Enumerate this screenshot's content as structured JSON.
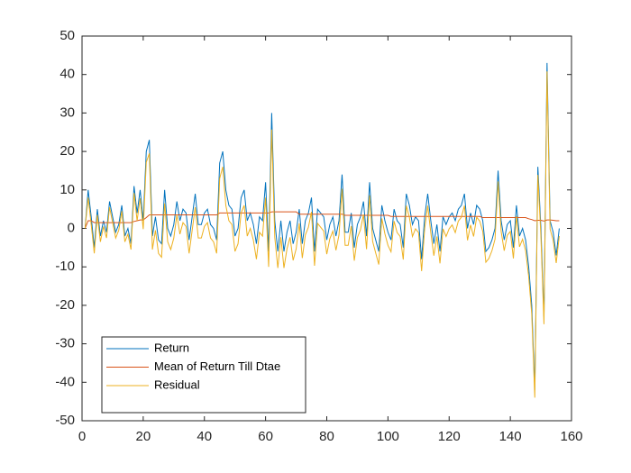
{
  "chart_data": {
    "type": "line",
    "x": [
      1,
      2,
      3,
      4,
      5,
      6,
      7,
      8,
      9,
      10,
      11,
      12,
      13,
      14,
      15,
      16,
      17,
      18,
      19,
      20,
      21,
      22,
      23,
      24,
      25,
      26,
      27,
      28,
      29,
      30,
      31,
      32,
      33,
      34,
      35,
      36,
      37,
      38,
      39,
      40,
      41,
      42,
      43,
      44,
      45,
      46,
      47,
      48,
      49,
      50,
      51,
      52,
      53,
      54,
      55,
      56,
      57,
      58,
      59,
      60,
      61,
      62,
      63,
      64,
      65,
      66,
      67,
      68,
      69,
      70,
      71,
      72,
      73,
      74,
      75,
      76,
      77,
      78,
      79,
      80,
      81,
      82,
      83,
      84,
      85,
      86,
      87,
      88,
      89,
      90,
      91,
      92,
      93,
      94,
      95,
      96,
      97,
      98,
      99,
      100,
      101,
      102,
      103,
      104,
      105,
      106,
      107,
      108,
      109,
      110,
      111,
      112,
      113,
      114,
      115,
      116,
      117,
      118,
      119,
      120,
      121,
      122,
      123,
      124,
      125,
      126,
      127,
      128,
      129,
      130,
      131,
      132,
      133,
      134,
      135,
      136,
      137,
      138,
      139,
      140,
      141,
      142,
      143,
      144,
      145,
      146,
      147,
      148,
      149,
      150,
      151,
      152,
      153,
      154,
      155,
      156
    ],
    "series": [
      {
        "name": "Return",
        "color": "#0072BD",
        "values": [
          0,
          10,
          3,
          -5,
          5,
          -2,
          2,
          -1,
          7,
          3,
          -1,
          1,
          6,
          -2,
          0,
          -4,
          11,
          4,
          10,
          2,
          20,
          23,
          -2,
          3,
          -3,
          -4,
          10,
          0,
          -2,
          1,
          7,
          2,
          5,
          4,
          -3,
          3,
          9,
          1,
          1,
          4,
          5,
          1,
          0,
          -3,
          17,
          20,
          10,
          6,
          5,
          -2,
          0,
          8,
          10,
          2,
          4,
          1,
          -4,
          3,
          2,
          12,
          -6,
          30,
          2,
          -6,
          2,
          -6,
          -1,
          2,
          -4,
          -1,
          5,
          -4,
          2,
          4,
          8,
          -6,
          5,
          4,
          3,
          -3,
          1,
          3,
          -2,
          2,
          14,
          -1,
          -1,
          4,
          -5,
          1,
          3,
          7,
          -2,
          12,
          0,
          -3,
          -6,
          6,
          2,
          -1,
          -3,
          5,
          2,
          1,
          -5,
          9,
          6,
          1,
          3,
          2,
          -8,
          3,
          9,
          2,
          -4,
          1,
          -6,
          3,
          1,
          3,
          4,
          2,
          5,
          6,
          9,
          0,
          4,
          1,
          6,
          5,
          2,
          -6,
          -5,
          -3,
          0,
          15,
          2,
          -3,
          1,
          2,
          -5,
          6,
          -2,
          0,
          -3,
          -10,
          -20,
          -42,
          16,
          0,
          -23,
          43,
          2,
          -1,
          -7,
          0
        ]
      },
      {
        "name": "Mean of Return Till Dtae",
        "color": "#D95319",
        "values": [
          0,
          2,
          2,
          1.5,
          1.5,
          1.5,
          1.5,
          1.5,
          1.5,
          1.5,
          1.5,
          1.5,
          1.5,
          1.5,
          1.5,
          1.5,
          1.8,
          2,
          2.2,
          2.2,
          2.8,
          3.5,
          3.5,
          3.5,
          3.5,
          3.5,
          3.5,
          3.5,
          3.5,
          3.5,
          3.5,
          3.5,
          3.5,
          3.5,
          3.5,
          3.5,
          3.5,
          3.5,
          3.5,
          3.5,
          3.5,
          3.5,
          3.5,
          3.5,
          4,
          4,
          4,
          4,
          4,
          4,
          4,
          4,
          4,
          4,
          4,
          4,
          4,
          4,
          4,
          4,
          4,
          4.3,
          4.3,
          4.3,
          4.3,
          4.3,
          4.3,
          4.3,
          4.3,
          4.3,
          3.7,
          3.7,
          3.7,
          3.7,
          3.7,
          3.7,
          3.7,
          3.7,
          3.7,
          3.7,
          3.7,
          3.7,
          3.7,
          3.7,
          3.7,
          3.4,
          3.4,
          3.4,
          3.4,
          3.4,
          3.4,
          3.4,
          3.4,
          3.4,
          3.4,
          3.4,
          3.4,
          3.4,
          3.4,
          3.4,
          3.1,
          3.1,
          3.1,
          3.1,
          3.1,
          3.1,
          3.1,
          3.1,
          3.1,
          3.1,
          3.1,
          3.1,
          3.1,
          3.1,
          3.1,
          3.1,
          3.1,
          3.1,
          3.1,
          3.1,
          3.1,
          3.1,
          3.1,
          3.1,
          3.1,
          3.1,
          3.1,
          3.1,
          3.1,
          3.1,
          2.8,
          2.8,
          2.8,
          2.8,
          2.8,
          2.8,
          2.8,
          2.8,
          2.8,
          2.8,
          2.8,
          2.8,
          2.8,
          2.8,
          2.8,
          2.5,
          2.3,
          2.0,
          2.1,
          2.1,
          1.9,
          2.2,
          2.2,
          2.1,
          2,
          2
        ]
      },
      {
        "name": "Residual",
        "color": "#EDB120",
        "values": [
          0,
          8,
          1,
          -6.5,
          3.5,
          -3.5,
          0.5,
          -2.5,
          5.5,
          1.5,
          -2.5,
          -0.5,
          4.5,
          -3.5,
          -1.5,
          -5.5,
          9.2,
          2,
          7.8,
          -0.2,
          17.2,
          19.5,
          -5.5,
          -0.5,
          -6.5,
          -7.5,
          6.5,
          -3.5,
          -5.5,
          -2.5,
          3.5,
          -1.5,
          1.5,
          0.5,
          -6.5,
          -0.5,
          5.5,
          -2.5,
          -2.5,
          0.5,
          1.5,
          -2.5,
          -3.5,
          -6.5,
          13,
          16,
          6,
          2,
          1,
          -6,
          -4,
          4,
          6,
          -2,
          0,
          -3,
          -8,
          -1,
          -2,
          8,
          -10,
          25.7,
          -2.3,
          -10.3,
          -2.3,
          -10.3,
          -5.3,
          -2.3,
          -8.3,
          -5.3,
          1.3,
          -7.7,
          -1.7,
          0.3,
          4.3,
          -9.7,
          1.3,
          0.3,
          -0.7,
          -6.7,
          -2.7,
          -0.7,
          -5.7,
          -1.7,
          10.3,
          -4.4,
          -4.4,
          0.6,
          -8.4,
          -2.4,
          -0.4,
          3.6,
          -5.4,
          8.6,
          -3.4,
          -6.4,
          -9.4,
          2.6,
          -1.4,
          -4.4,
          -6.1,
          1.9,
          -1.1,
          -2.1,
          -8.1,
          5.9,
          2.9,
          -2.1,
          -0.1,
          -1.1,
          -11.1,
          -0.1,
          5.9,
          -1.1,
          -7.1,
          -2.1,
          -9.1,
          -0.1,
          -2.1,
          -0.1,
          0.9,
          -1.1,
          1.9,
          2.9,
          5.9,
          -3.1,
          0.9,
          -2.1,
          2.9,
          1.9,
          -0.8,
          -8.8,
          -7.8,
          -5.8,
          -2.8,
          12.2,
          -0.8,
          -5.8,
          -1.8,
          -0.8,
          -7.8,
          3.2,
          -4.8,
          -2.8,
          -5.8,
          -12.5,
          -22.3,
          -44,
          13.9,
          -2.1,
          -24.9,
          40.8,
          -0.2,
          -3.1,
          -9,
          -2
        ]
      }
    ],
    "xlim": [
      0,
      160
    ],
    "xticks": [
      0,
      20,
      40,
      60,
      80,
      100,
      120,
      140,
      160
    ],
    "ylim": [
      -50,
      50
    ],
    "yticks": [
      -50,
      -40,
      -30,
      -20,
      -10,
      0,
      10,
      20,
      30,
      40,
      50
    ],
    "grid": false,
    "legend": "lower left"
  }
}
